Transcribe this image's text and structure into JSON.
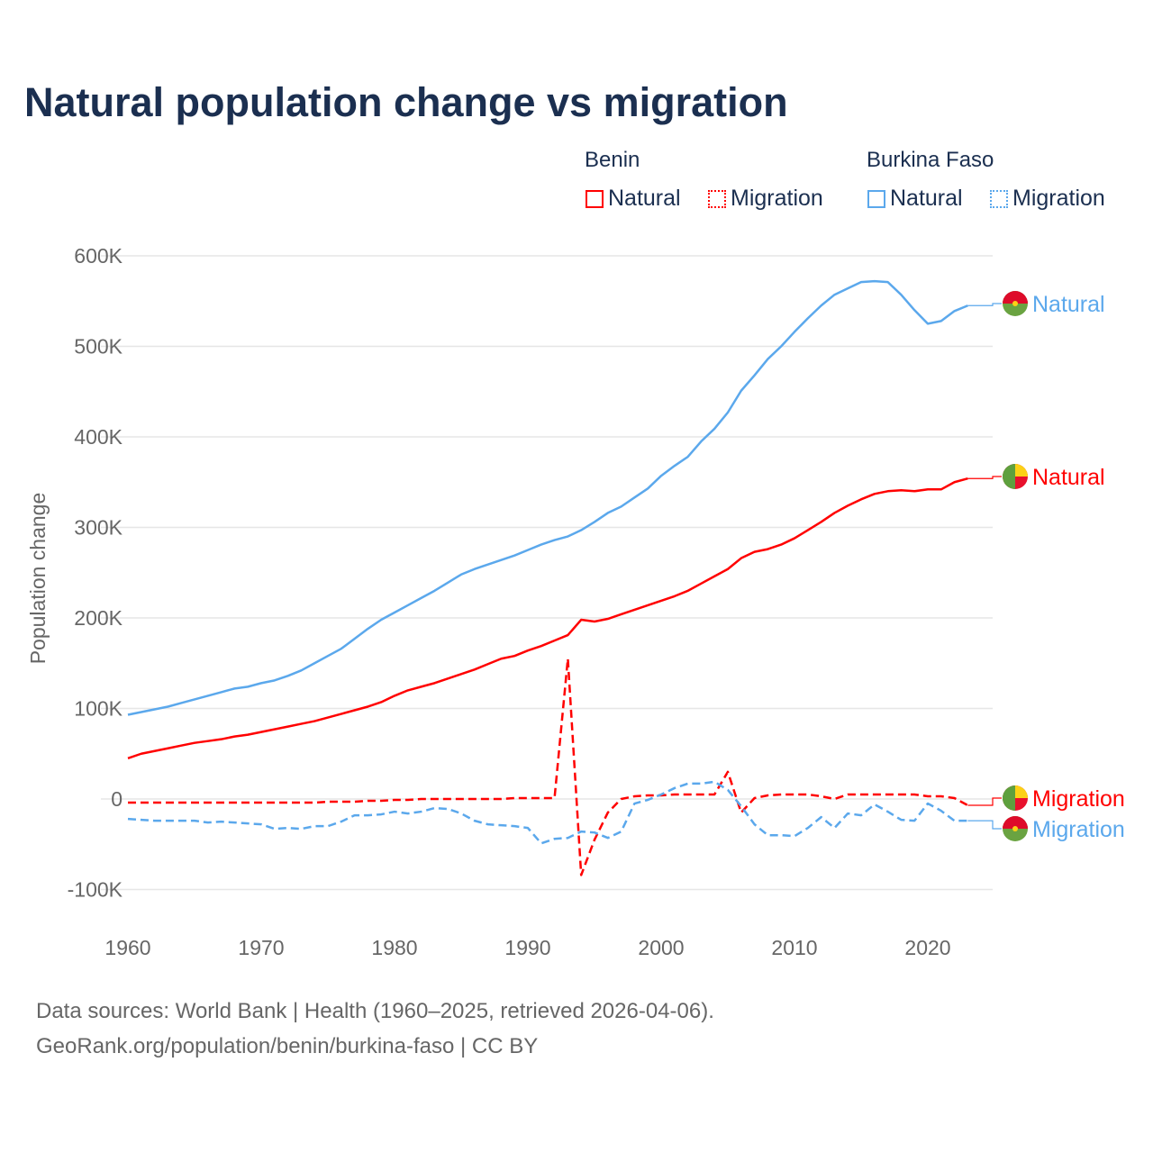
{
  "title": "Natural population change vs migration",
  "legend": {
    "groups": [
      {
        "name": "Benin",
        "items": [
          {
            "label": "Natural",
            "style": "solid"
          },
          {
            "label": "Migration",
            "style": "dotted"
          }
        ],
        "color": "#ff0000"
      },
      {
        "name": "Burkina Faso",
        "items": [
          {
            "label": "Natural",
            "style": "solid"
          },
          {
            "label": "Migration",
            "style": "dotted"
          }
        ],
        "color": "#5ba8ec"
      }
    ]
  },
  "footer": {
    "line1": "Data sources: World Bank | Health (1960–2025, retrieved 2026-04-06).",
    "line2": "GeoRank.org/population/benin/burkina-faso | CC BY"
  },
  "chart_data": {
    "type": "line",
    "title": "Natural population change vs migration",
    "xlabel": "",
    "ylabel": "Population change",
    "xlim": [
      1960,
      2025
    ],
    "ylim": [
      -100000,
      600000
    ],
    "xticks": [
      1960,
      1970,
      1980,
      1990,
      2000,
      2010,
      2020
    ],
    "xtick_labels": [
      "1960",
      "1970",
      "1980",
      "1990",
      "2000",
      "2010",
      "2020"
    ],
    "yticks": [
      -100000,
      0,
      100000,
      200000,
      300000,
      400000,
      500000,
      600000
    ],
    "ytick_labels": [
      "-100K",
      "0",
      "100K",
      "200K",
      "300K",
      "400K",
      "500K",
      "600K"
    ],
    "grid": true,
    "x_start": 1960,
    "series": [
      {
        "name": "Burkina Faso Natural",
        "end_label": "Natural",
        "country": "Burkina Faso",
        "color": "#5ba8ec",
        "dash": false,
        "unit": "thousand",
        "values": [
          93,
          96,
          99,
          102,
          106,
          110,
          114,
          118,
          122,
          124,
          128,
          131,
          136,
          142,
          150,
          158,
          166,
          177,
          188,
          198,
          206,
          214,
          222,
          230,
          239,
          248,
          254,
          259,
          264,
          269,
          275,
          281,
          286,
          290,
          297,
          306,
          316,
          323,
          333,
          343,
          357,
          368,
          378,
          395,
          409,
          427,
          451,
          468,
          486,
          500,
          516,
          531,
          545,
          557,
          564,
          571,
          572,
          571,
          557,
          540,
          525,
          528,
          539,
          545
        ]
      },
      {
        "name": "Benin Natural",
        "end_label": "Natural",
        "country": "Benin",
        "color": "#ff0000",
        "dash": false,
        "unit": "thousand",
        "values": [
          45,
          50,
          53,
          56,
          59,
          62,
          64,
          66,
          69,
          71,
          74,
          77,
          80,
          83,
          86,
          90,
          94,
          98,
          102,
          107,
          114,
          120,
          124,
          128,
          133,
          138,
          143,
          149,
          155,
          158,
          164,
          169,
          175,
          181,
          198,
          196,
          199,
          204,
          209,
          214,
          219,
          224,
          230,
          238,
          246,
          254,
          266,
          273,
          276,
          281,
          288,
          297,
          306,
          316,
          324,
          331,
          337,
          340,
          341,
          340,
          342,
          342,
          350,
          354
        ]
      },
      {
        "name": "Benin Migration",
        "end_label": "Migration",
        "country": "Benin",
        "color": "#ff0000",
        "dash": true,
        "unit": "thousand",
        "values": [
          -4,
          -4,
          -4,
          -4,
          -4,
          -4,
          -4,
          -4,
          -4,
          -4,
          -4,
          -4,
          -4,
          -4,
          -4,
          -3,
          -3,
          -3,
          -2,
          -2,
          -1,
          -1,
          0,
          0,
          0,
          0,
          0,
          0,
          0,
          1,
          1,
          1,
          1,
          155,
          -84,
          -45,
          -15,
          0,
          3,
          4,
          4,
          5,
          5,
          5,
          5,
          30,
          -15,
          1,
          4,
          5,
          5,
          5,
          3,
          0,
          5,
          5,
          5,
          5,
          5,
          5,
          3,
          3,
          1,
          -7
        ]
      },
      {
        "name": "Burkina Faso Migration",
        "end_label": "Migration",
        "country": "Burkina Faso",
        "color": "#5ba8ec",
        "dash": true,
        "unit": "thousand",
        "values": [
          -22,
          -23,
          -24,
          -24,
          -24,
          -24,
          -26,
          -25,
          -26,
          -27,
          -28,
          -33,
          -32,
          -33,
          -30,
          -30,
          -25,
          -18,
          -18,
          -17,
          -14,
          -16,
          -14,
          -10,
          -11,
          -16,
          -24,
          -28,
          -29,
          -30,
          -32,
          -49,
          -44,
          -43,
          -36,
          -37,
          -43,
          -36,
          -5,
          -1,
          5,
          12,
          17,
          17,
          19,
          10,
          -8,
          -28,
          -40,
          -40,
          -41,
          -32,
          -20,
          -32,
          -16,
          -18,
          -6,
          -14,
          -23,
          -24,
          -5,
          -13,
          -24,
          -24
        ]
      }
    ]
  }
}
